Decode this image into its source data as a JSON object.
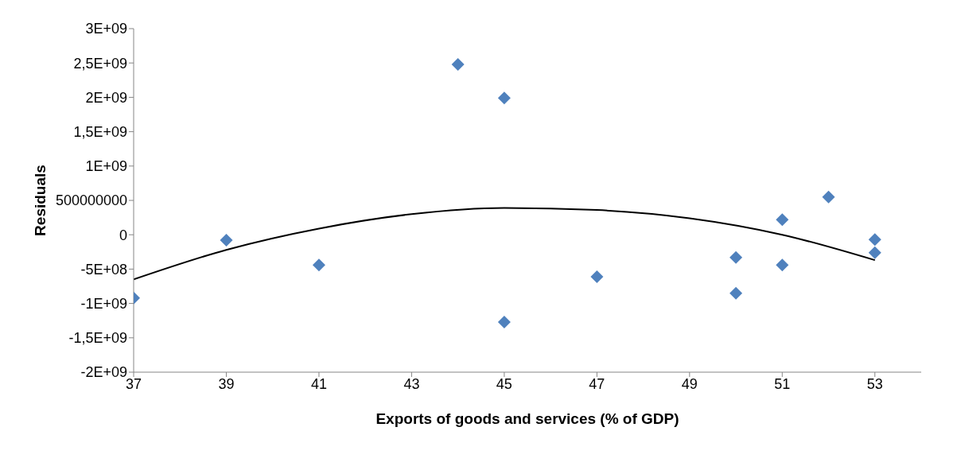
{
  "chart_data": {
    "type": "scatter",
    "xlabel": "Exports of goods and services (% of GDP)",
    "ylabel": "Residuals",
    "xlim": [
      37,
      54
    ],
    "xticks": [
      37,
      39,
      41,
      43,
      45,
      47,
      49,
      51,
      53
    ],
    "ylim": [
      -2000000000,
      3000000000
    ],
    "yticks": [
      {
        "value": -2000000000,
        "label": "-2E+09"
      },
      {
        "value": -1500000000,
        "label": "-1,5E+09"
      },
      {
        "value": -1000000000,
        "label": "-1E+09"
      },
      {
        "value": -500000000,
        "label": "-5E+08"
      },
      0,
      {
        "value": 500000000,
        "label": "500000000"
      },
      {
        "value": 1000000000,
        "label": "1E+09"
      },
      {
        "value": 1500000000,
        "label": "1,5E+09"
      },
      {
        "value": 2000000000,
        "label": "2E+09"
      },
      {
        "value": 2500000000,
        "label": "2,5E+09"
      },
      {
        "value": 3000000000,
        "label": "3E+09"
      }
    ],
    "grid": false,
    "legend": false,
    "marker": "diamond",
    "series": [
      {
        "color": "#4f81bd",
        "x": [
          37,
          39,
          41,
          44,
          45,
          45,
          47,
          50,
          50,
          51,
          51,
          52,
          53,
          53
        ],
        "values": [
          -920000000,
          -80000000,
          -440000000,
          2480000000,
          1990000000,
          -1270000000,
          -610000000,
          -330000000,
          -850000000,
          220000000,
          -440000000,
          550000000,
          -70000000,
          -260000000
        ]
      },
      {
        "type": "line",
        "color": "#000000",
        "marker": "none",
        "line_style": "solid",
        "x": [
          37,
          39,
          41,
          43,
          45,
          47,
          49,
          51,
          53
        ],
        "values": [
          -650000000,
          -220000000,
          90000000,
          300000000,
          390000000,
          360000000,
          240000000,
          0,
          -370000000
        ]
      }
    ]
  }
}
